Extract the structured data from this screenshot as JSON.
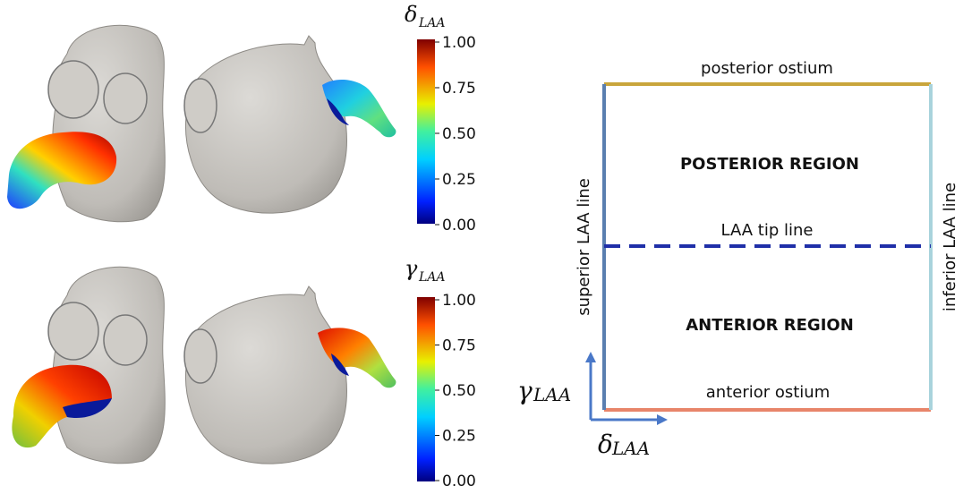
{
  "colorbars": [
    {
      "symbol": "δ",
      "subscript": "LAA",
      "ticks": [
        "1.00",
        "0.75",
        "0.50",
        "0.25",
        "0.00"
      ]
    },
    {
      "symbol": "γ",
      "subscript": "LAA",
      "ticks": [
        "1.00",
        "0.75",
        "0.50",
        "0.25",
        "0.00"
      ]
    }
  ],
  "schematic": {
    "posterior_ostium": "posterior ostium",
    "anterior_ostium": "anterior ostium",
    "superior_line": "superior LAA line",
    "inferior_line": "inferior LAA line",
    "tip_line": "LAA tip line",
    "posterior_region": "POSTERIOR REGION",
    "anterior_region": "ANTERIOR REGION",
    "axis_x": {
      "symbol": "δ",
      "subscript": "LAA"
    },
    "axis_y": {
      "symbol": "γ",
      "subscript": "LAA"
    },
    "colors": {
      "posterior_ostium": "#c9a53c",
      "anterior_ostium": "#e8856a",
      "superior_line": "#5a7fb0",
      "inferior_line": "#a9d3dc",
      "tip_line": "#1f2fa8",
      "axis_arrow": "#4a78c8"
    }
  },
  "colormap": [
    "#00007f",
    "#0050ff",
    "#00c8ff",
    "#4ef0a0",
    "#e8f000",
    "#ff8c00",
    "#e00000",
    "#7f0000"
  ]
}
